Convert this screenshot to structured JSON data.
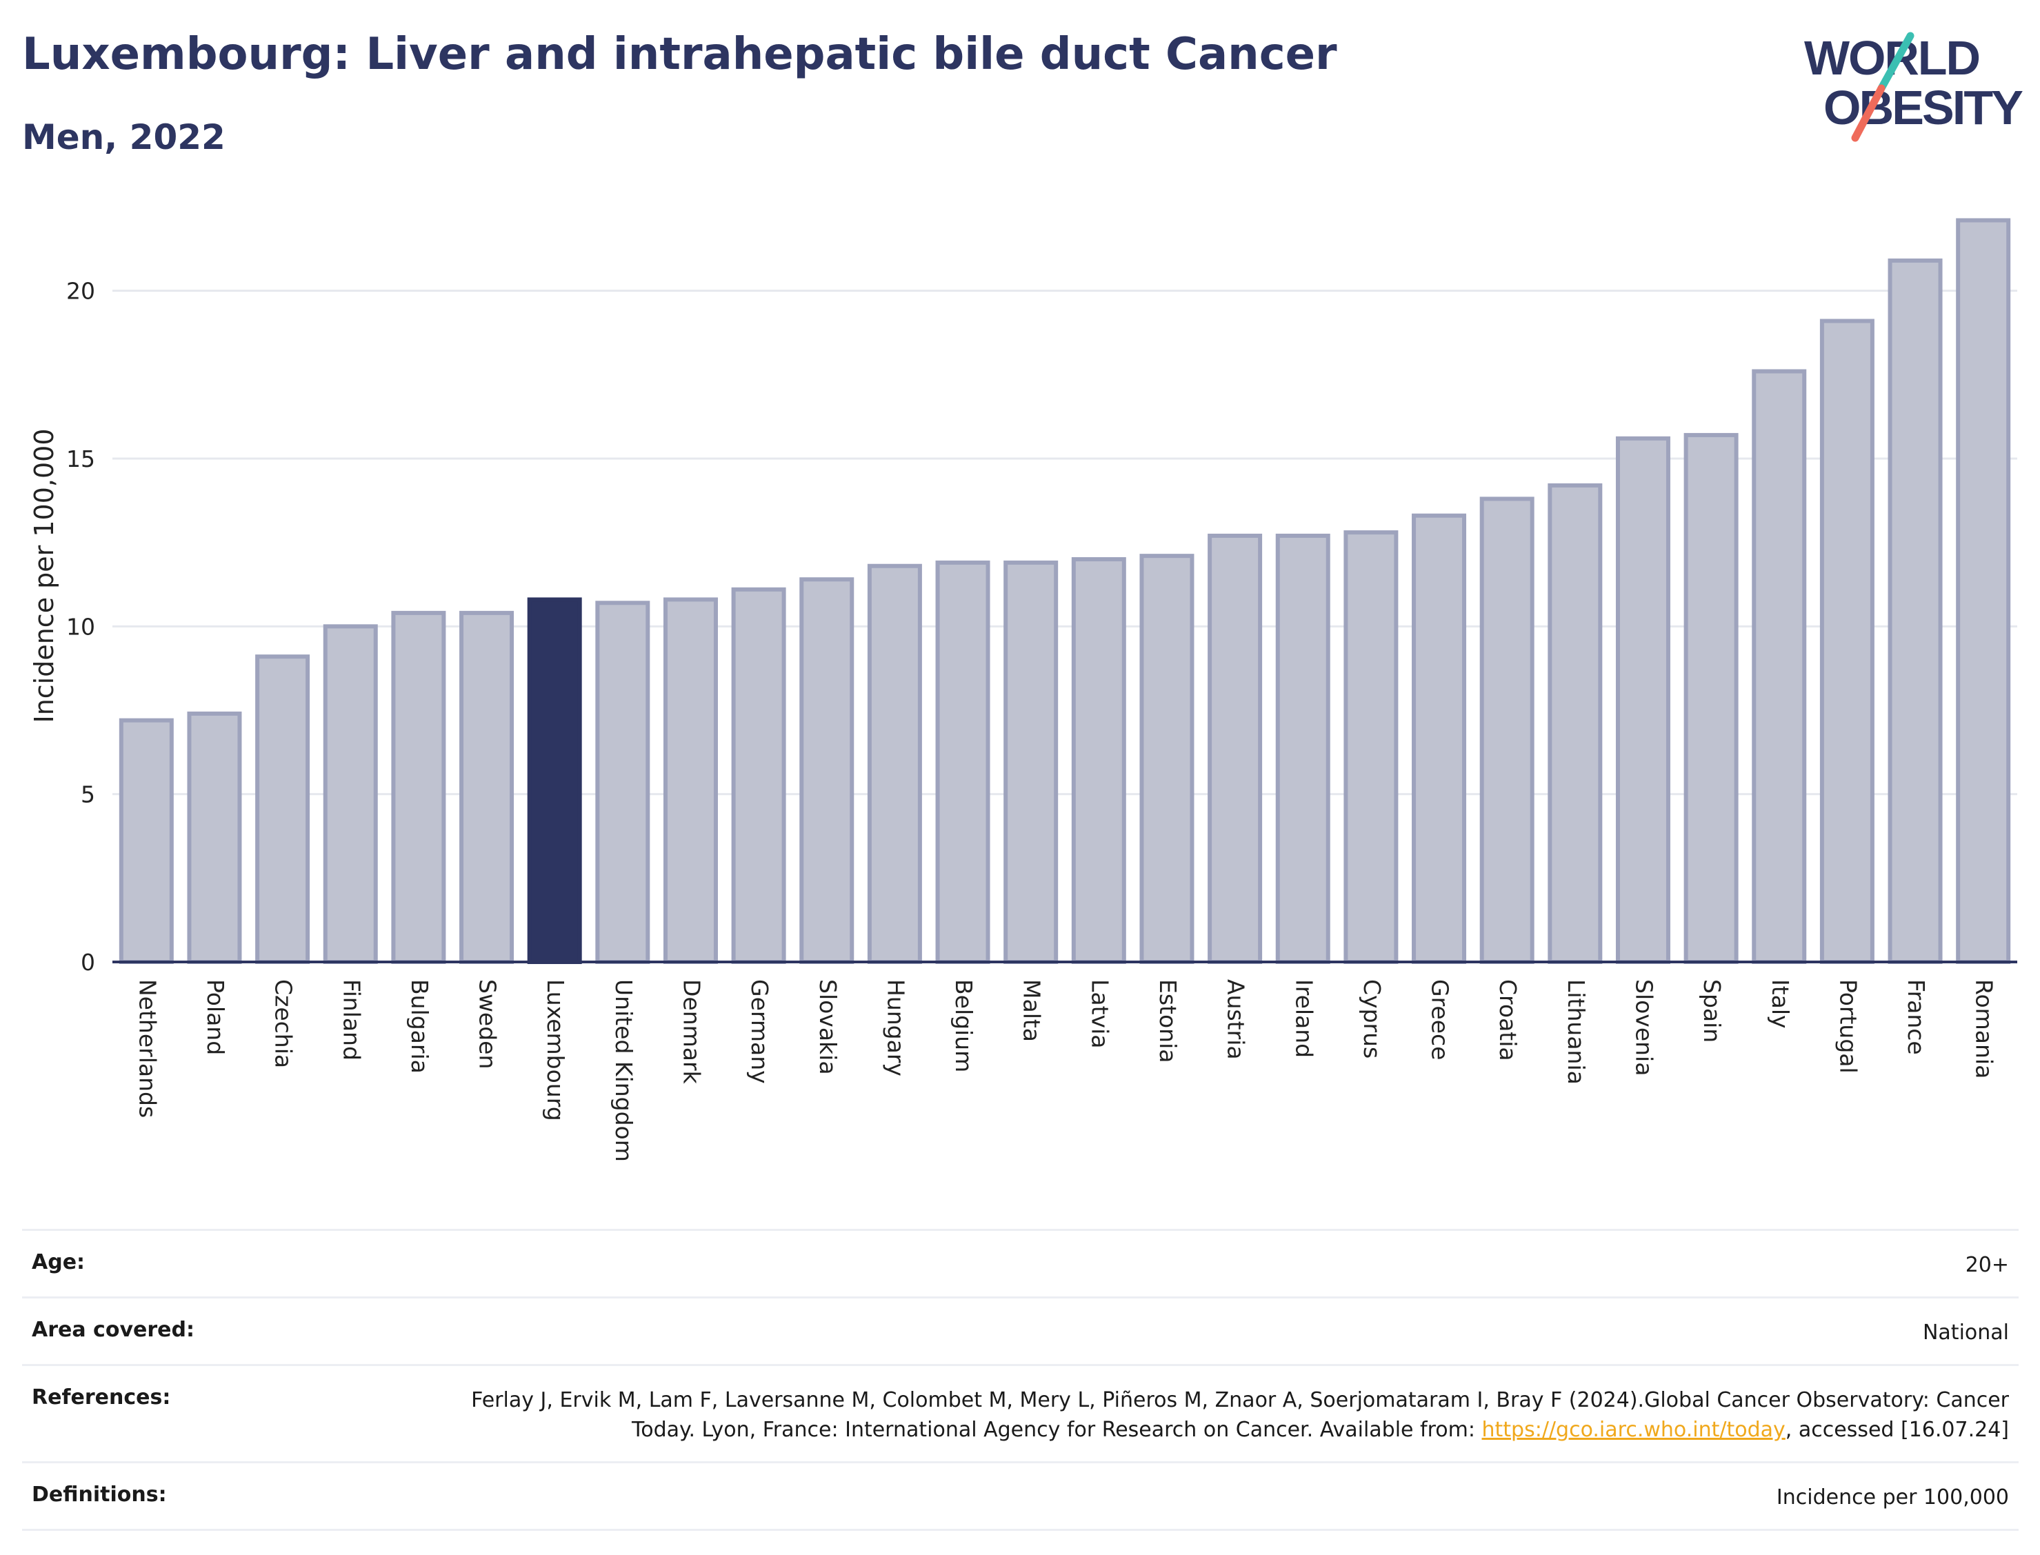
{
  "title": "Luxembourg: Liver and intrahepatic bile duct Cancer",
  "subtitle": "Men, 2022",
  "logo": {
    "line1": "WORLD",
    "line2": "OBESITY",
    "colors": {
      "text": "#2d3561",
      "slash_top": "#3bbfb2",
      "slash_bottom": "#ef6b5b"
    }
  },
  "colors": {
    "bar": "#bfc2d0",
    "bar_border": "#9ea3bd",
    "highlight": "#2d3561",
    "axis": "#2d3561",
    "grid": "#e6e8ee"
  },
  "chart_data": {
    "type": "bar",
    "ylabel": "Incidence per 100,000",
    "ylim": [
      0,
      22.5
    ],
    "yticks": [
      0,
      5,
      10,
      15,
      20
    ],
    "grid": true,
    "highlight": "Luxembourg",
    "categories": [
      "Netherlands",
      "Poland",
      "Czechia",
      "Finland",
      "Bulgaria",
      "Sweden",
      "Luxembourg",
      "United Kingdom",
      "Denmark",
      "Germany",
      "Slovakia",
      "Hungary",
      "Belgium",
      "Malta",
      "Latvia",
      "Estonia",
      "Austria",
      "Ireland",
      "Cyprus",
      "Greece",
      "Croatia",
      "Lithuania",
      "Slovenia",
      "Spain",
      "Italy",
      "Portugal",
      "France",
      "Romania"
    ],
    "values": [
      7.2,
      7.4,
      9.1,
      10.0,
      10.4,
      10.4,
      10.8,
      10.7,
      10.8,
      11.1,
      11.4,
      11.8,
      11.9,
      11.9,
      12.0,
      12.1,
      12.7,
      12.7,
      12.8,
      13.3,
      13.8,
      14.2,
      15.6,
      15.7,
      17.6,
      19.1,
      20.9,
      22.1
    ]
  },
  "meta": {
    "age_label": "Age:",
    "age_value": "20+",
    "area_label": "Area covered:",
    "area_value": "National",
    "refs_label": "References:",
    "refs_text_1": "Ferlay J, Ervik M, Lam F, Laversanne M, Colombet M, Mery L, Piñeros M, Znaor A, Soerjomataram I, Bray F (2024).Global Cancer Observatory: Cancer Today. Lyon, France: International Agency for Research on Cancer. Available from: ",
    "refs_link": "https://gco.iarc.who.int/today",
    "refs_text_2": ", accessed [16.07.24]",
    "defs_label": "Definitions:",
    "defs_value": "Incidence per 100,000"
  }
}
